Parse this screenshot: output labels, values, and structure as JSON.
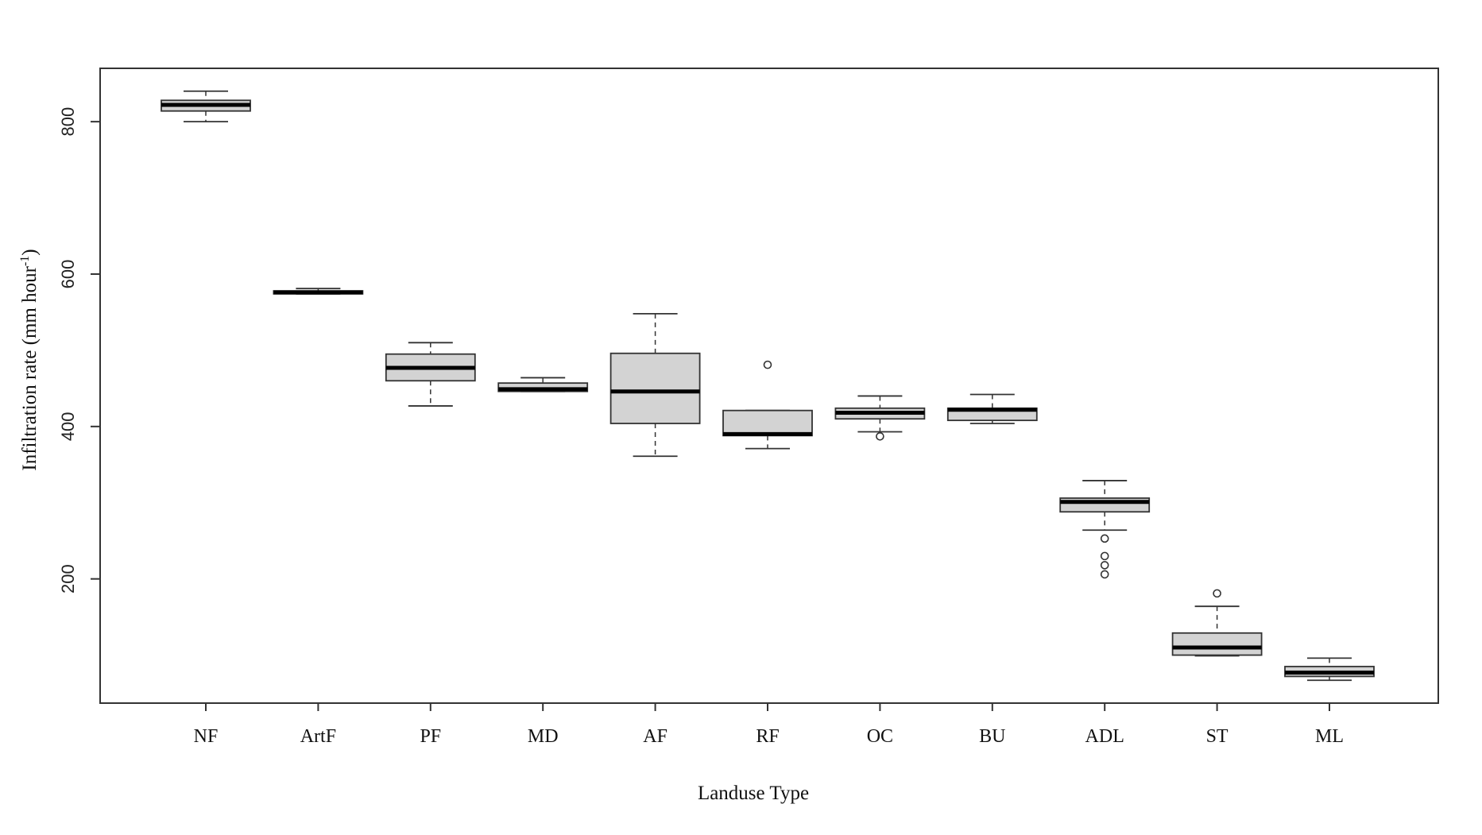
{
  "chart_data": {
    "type": "boxplot",
    "title": "",
    "xlabel": "Landuse Type",
    "ylabel": "Infiltration rate (mm hour",
    "ylabel_sup": "-1",
    "ylabel_close": ")",
    "ylim": [
      37,
      870
    ],
    "yticks": [
      200,
      400,
      600,
      800
    ],
    "ytick_labels": [
      "200",
      "400",
      "600",
      "800"
    ],
    "grid": false,
    "legend": "none",
    "box_fill": "#d3d3d3",
    "line_color": "#000000",
    "categories": [
      "NF",
      "ArtF",
      "PF",
      "MD",
      "AF",
      "RF",
      "OC",
      "BU",
      "ADL",
      "ST",
      "ML"
    ],
    "boxes": [
      {
        "category": "NF",
        "whisker_low": 800,
        "q1": 814,
        "median": 822,
        "q3": 828,
        "whisker_high": 840,
        "outliers": []
      },
      {
        "category": "ArtF",
        "whisker_low": 574,
        "q1": 574,
        "median": 576,
        "q3": 578,
        "whisker_high": 581,
        "outliers": []
      },
      {
        "category": "PF",
        "whisker_low": 427,
        "q1": 460,
        "median": 477,
        "q3": 495,
        "whisker_high": 510,
        "outliers": []
      },
      {
        "category": "MD",
        "whisker_low": 446,
        "q1": 446,
        "median": 449,
        "q3": 457,
        "whisker_high": 464,
        "outliers": []
      },
      {
        "category": "AF",
        "whisker_low": 361,
        "q1": 404,
        "median": 446,
        "q3": 496,
        "whisker_high": 548,
        "outliers": []
      },
      {
        "category": "RF",
        "whisker_low": 371,
        "q1": 388,
        "median": 390,
        "q3": 421,
        "whisker_high": 421,
        "outliers": [
          481
        ]
      },
      {
        "category": "OC",
        "whisker_low": 393,
        "q1": 410,
        "median": 418,
        "q3": 424,
        "whisker_high": 440,
        "outliers": [
          387
        ]
      },
      {
        "category": "BU",
        "whisker_low": 404,
        "q1": 408,
        "median": 422,
        "q3": 424,
        "whisker_high": 442,
        "outliers": []
      },
      {
        "category": "ADL",
        "whisker_low": 264,
        "q1": 288,
        "median": 301,
        "q3": 306,
        "whisker_high": 329,
        "outliers": [
          253,
          230,
          218,
          206
        ]
      },
      {
        "category": "ST",
        "whisker_low": 99,
        "q1": 100,
        "median": 110,
        "q3": 129,
        "whisker_high": 164,
        "outliers": [
          181
        ]
      },
      {
        "category": "ML",
        "whisker_low": 67,
        "q1": 72,
        "median": 77,
        "q3": 85,
        "whisker_high": 96,
        "outliers": []
      }
    ]
  }
}
